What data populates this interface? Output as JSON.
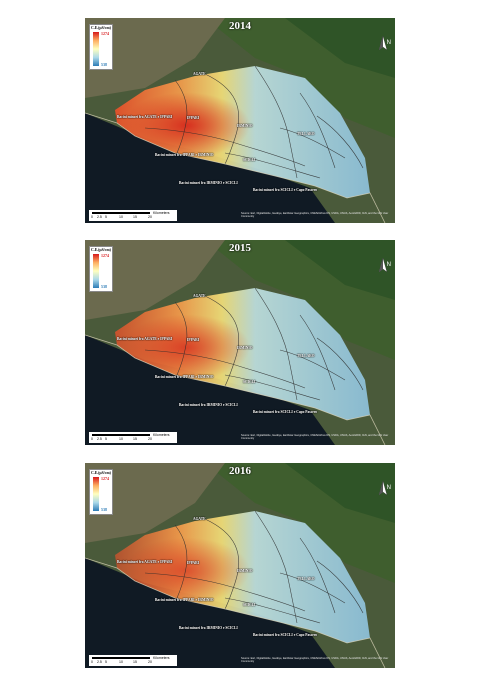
{
  "legend": {
    "title": "C.E.(µS/cm)",
    "max": "1274",
    "min": "538",
    "colors": [
      "#d7191c",
      "#fdae61",
      "#ffffbf",
      "#abd9e9",
      "#2c7bb6"
    ]
  },
  "north": {
    "label": "N"
  },
  "labels": {
    "agate": "AGATE",
    "ippari": "IPPARI",
    "dirillo": "DIRILLO",
    "irminio": "IRMINIO",
    "tellaro": "TELLARO",
    "scicli": "SCICLI",
    "bacini_agate_ippari": "Bacini minori fra AGATE e IPPARI",
    "bacini_ippari_irminio": "Bacini minori fra IPPARI e IRMINIO",
    "bacini_irminio_scicli": "Bacini minori fra IRMINIO e SCICLI",
    "bacini_scicli_capo": "Bacini minori fra SCICLI e Capo Passero"
  },
  "scale": {
    "ticks": [
      "0",
      "2.5",
      "5",
      "10",
      "15",
      "20"
    ],
    "unit": "Kilometers"
  },
  "credits": "Source: Esri, DigitalGlobe, GeoEye, Earthstar Geographics, CNES/Airbus DS, USDA, USGS, AeroGRID, IGN, and the GIS User Community",
  "panels": [
    {
      "year": "2014",
      "intensity": 1.0
    },
    {
      "year": "2015",
      "intensity": 0.85
    },
    {
      "year": "2016",
      "intensity": 0.7
    }
  ]
}
